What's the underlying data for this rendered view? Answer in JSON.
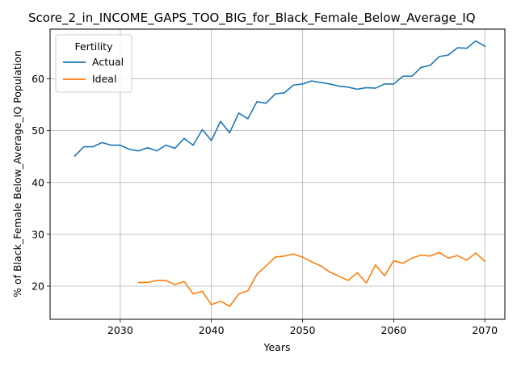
{
  "chart_data": {
    "type": "line",
    "title": "Score_2_in_INCOME_GAPS_TOO_BIG_for_Black_Female_Below_Average_IQ",
    "xlabel": "Years",
    "ylabel": "% of Black_Female Below_Average_IQ Population",
    "xlim": [
      2022.3,
      2072.2
    ],
    "ylim": [
      13.6,
      69.6
    ],
    "xticks": [
      2030,
      2040,
      2050,
      2060,
      2070
    ],
    "yticks": [
      20,
      30,
      40,
      50,
      60
    ],
    "grid": true,
    "legend": {
      "title": "Fertility",
      "position": "upper-left"
    },
    "series": [
      {
        "name": "Actual",
        "color": "#1f77b4",
        "x": [
          2025,
          2026,
          2027,
          2028,
          2029,
          2030,
          2031,
          2032,
          2033,
          2034,
          2035,
          2036,
          2037,
          2038,
          2039,
          2040,
          2041,
          2042,
          2043,
          2044,
          2045,
          2046,
          2047,
          2048,
          2049,
          2050,
          2051,
          2052,
          2053,
          2054,
          2055,
          2056,
          2057,
          2058,
          2059,
          2060,
          2061,
          2062,
          2063,
          2064,
          2065,
          2066,
          2067,
          2068,
          2069,
          2070
        ],
        "values": [
          45.1,
          46.9,
          46.9,
          47.7,
          47.2,
          47.2,
          46.4,
          46.1,
          46.7,
          46.1,
          47.2,
          46.6,
          48.5,
          47.2,
          50.2,
          48.1,
          51.8,
          49.6,
          53.4,
          52.3,
          55.6,
          55.3,
          57.1,
          57.3,
          58.8,
          59.0,
          59.6,
          59.3,
          59.0,
          58.6,
          58.4,
          58.0,
          58.3,
          58.2,
          59.0,
          59.0,
          60.5,
          60.5,
          62.2,
          62.6,
          64.3,
          64.6,
          66.0,
          65.9,
          67.3,
          66.3
        ]
      },
      {
        "name": "Ideal",
        "color": "#ff7f0e",
        "x": [
          2032,
          2033,
          2034,
          2035,
          2036,
          2037,
          2038,
          2039,
          2040,
          2041,
          2042,
          2043,
          2044,
          2045,
          2046,
          2047,
          2048,
          2049,
          2050,
          2051,
          2052,
          2053,
          2054,
          2055,
          2056,
          2057,
          2058,
          2059,
          2060,
          2061,
          2062,
          2063,
          2064,
          2065,
          2066,
          2067,
          2068,
          2069,
          2070
        ],
        "values": [
          20.7,
          20.7,
          21.1,
          21.1,
          20.3,
          20.9,
          18.5,
          19.0,
          16.4,
          17.1,
          16.1,
          18.5,
          19.1,
          22.3,
          23.9,
          25.6,
          25.8,
          26.2,
          25.6,
          24.7,
          23.9,
          22.7,
          21.9,
          21.1,
          22.6,
          20.6,
          24.1,
          22.0,
          24.9,
          24.4,
          25.4,
          26.0,
          25.8,
          26.5,
          25.4,
          25.9,
          25.0,
          26.4,
          24.8
        ]
      }
    ]
  }
}
